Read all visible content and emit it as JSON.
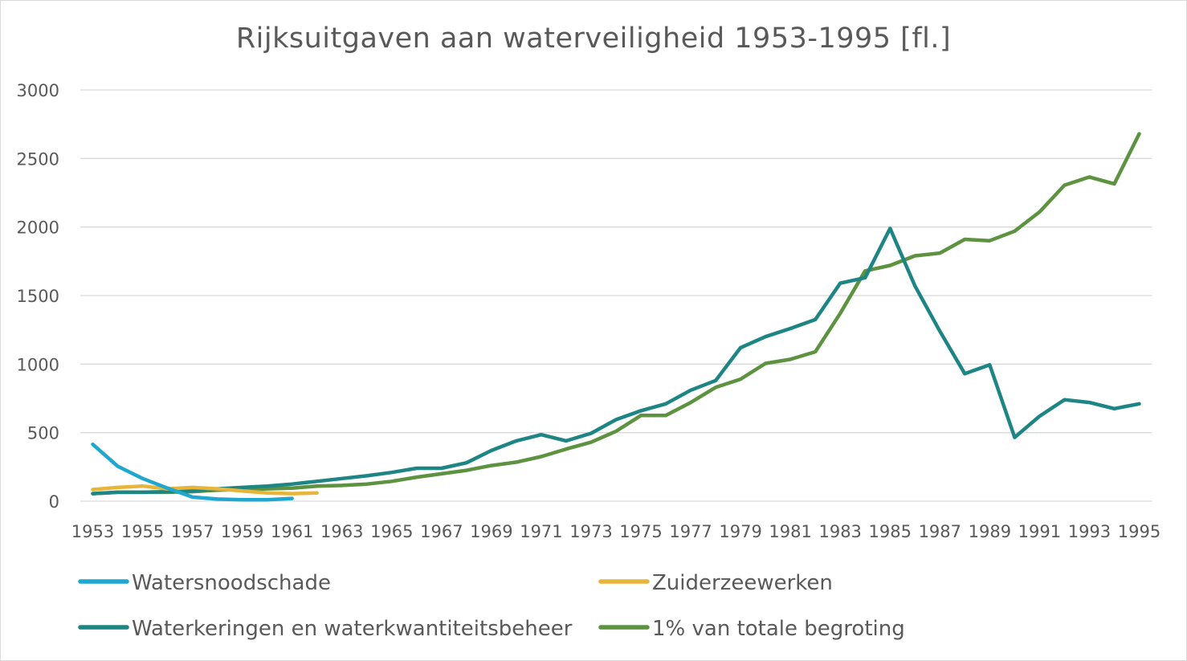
{
  "chart_data": {
    "type": "line",
    "title": "Rijksuitgaven aan waterveiligheid 1953-1995 [fl.]",
    "xlabel": "",
    "ylabel": "",
    "ylim": [
      0,
      3000
    ],
    "yticks": [
      0,
      500,
      1000,
      1500,
      2000,
      2500,
      3000
    ],
    "x_tick_labels": [
      "1953",
      "1955",
      "1957",
      "1959",
      "1961",
      "1963",
      "1965",
      "1967",
      "1969",
      "1971",
      "1973",
      "1975",
      "1977",
      "1979",
      "1981",
      "1983",
      "1985",
      "1987",
      "1989",
      "1991",
      "1993",
      "1995"
    ],
    "grid": true,
    "legend_position": "bottom",
    "series": [
      {
        "name": "Watersnoodschade",
        "color": "#1fa7cf",
        "x": [
          1953,
          1954,
          1955,
          1956,
          1957,
          1958,
          1959,
          1960,
          1961
        ],
        "values": [
          415,
          255,
          165,
          95,
          30,
          15,
          10,
          10,
          20
        ]
      },
      {
        "name": "Zuiderzeewerken",
        "color": "#e8b53b",
        "x": [
          1953,
          1954,
          1955,
          1956,
          1957,
          1958,
          1959,
          1960,
          1961,
          1962
        ],
        "values": [
          85,
          100,
          110,
          90,
          100,
          90,
          75,
          60,
          55,
          60
        ]
      },
      {
        "name": "Waterkeringen en waterkwantiteitsbeheer",
        "color": "#1e8585",
        "x": [
          1953,
          1954,
          1955,
          1956,
          1957,
          1958,
          1959,
          1960,
          1961,
          1962,
          1963,
          1964,
          1965,
          1966,
          1967,
          1968,
          1969,
          1970,
          1971,
          1972,
          1973,
          1974,
          1975,
          1976,
          1977,
          1978,
          1979,
          1980,
          1981,
          1982,
          1983,
          1984,
          1985,
          1986,
          1987,
          1988,
          1989,
          1990,
          1991,
          1992,
          1993,
          1994,
          1995
        ],
        "values": [
          55,
          65,
          65,
          70,
          75,
          90,
          100,
          110,
          125,
          145,
          165,
          185,
          210,
          240,
          240,
          280,
          370,
          440,
          485,
          440,
          495,
          595,
          660,
          710,
          810,
          880,
          1120,
          1200,
          1260,
          1325,
          1590,
          1630,
          1990,
          1570,
          1240,
          930,
          995,
          465,
          620,
          740,
          720,
          675,
          710
        ]
      },
      {
        "name": "1% van totale begroting",
        "color": "#5c9240",
        "x": [
          1953,
          1954,
          1955,
          1956,
          1957,
          1958,
          1959,
          1960,
          1961,
          1962,
          1963,
          1964,
          1965,
          1966,
          1967,
          1968,
          1969,
          1970,
          1971,
          1972,
          1973,
          1974,
          1975,
          1976,
          1977,
          1978,
          1979,
          1980,
          1981,
          1982,
          1983,
          1984,
          1985,
          1986,
          1987,
          1988,
          1989,
          1990,
          1991,
          1992,
          1993,
          1994,
          1995
        ],
        "values": [
          55,
          65,
          65,
          65,
          70,
          80,
          85,
          90,
          95,
          110,
          115,
          125,
          145,
          175,
          200,
          225,
          260,
          285,
          325,
          380,
          430,
          510,
          625,
          625,
          720,
          830,
          890,
          1005,
          1035,
          1090,
          1370,
          1680,
          1720,
          1790,
          1810,
          1910,
          1900,
          1970,
          2110,
          2305,
          2365,
          2315,
          2680
        ]
      }
    ]
  }
}
